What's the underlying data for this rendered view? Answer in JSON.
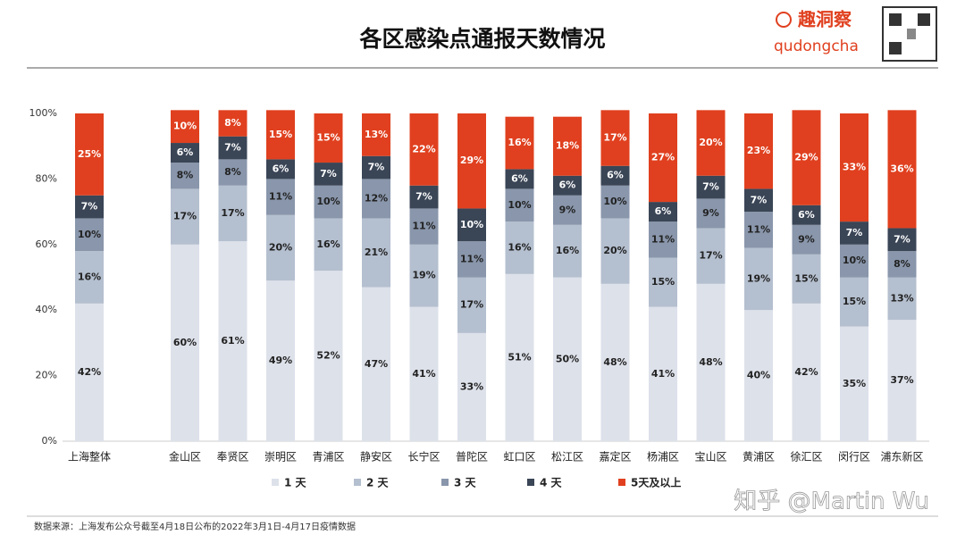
{
  "chart_data": {
    "type": "stacked_bar",
    "title": "各区感染点通报天数情况",
    "brand": "趣洞察",
    "brand_sub": "qudongcha",
    "source": "数据来源：上海发布公众号截至4月18日公布的2022年3月1日-4月17日疫情数据",
    "watermark": "知乎 @Martin Wu",
    "categories": [
      "上海整体",
      "金山区",
      "奉贤区",
      "崇明区",
      "青浦区",
      "静安区",
      "长宁区",
      "普陀区",
      "虹口区",
      "松江区",
      "嘉定区",
      "杨浦区",
      "宝山区",
      "黄浦区",
      "徐汇区",
      "闵行区",
      "浦东新区"
    ],
    "series": [
      {
        "name": "1 天",
        "color": "#dde1ea",
        "values": [
          42,
          60,
          61,
          49,
          52,
          47,
          41,
          33,
          51,
          50,
          48,
          41,
          48,
          40,
          42,
          35,
          37
        ],
        "value_labels": [
          "42%",
          "60%",
          "61%",
          "49%",
          "52%",
          "47%",
          "41%",
          "33%",
          "51%",
          "50%",
          "48%",
          "41%",
          "48%",
          "40%",
          "42%",
          "35%",
          "37%"
        ]
      },
      {
        "name": "2 天",
        "color": "#b4bfcf",
        "values": [
          16,
          17,
          17,
          20,
          16,
          21,
          19,
          17,
          16,
          16,
          20,
          15,
          17,
          19,
          15,
          15,
          13
        ],
        "value_labels": [
          "16%",
          "17%",
          "17%",
          "20%",
          "16%",
          "21%",
          "19%",
          "17%",
          "16%",
          "16%",
          "20%",
          "15%",
          "17%",
          "19%",
          "15%",
          "15%",
          "13%"
        ]
      },
      {
        "name": "3 天",
        "color": "#8996ab",
        "values": [
          10,
          8,
          8,
          11,
          10,
          12,
          11,
          11,
          10,
          9,
          10,
          11,
          9,
          11,
          9,
          10,
          8
        ],
        "value_labels": [
          "10%",
          "8%",
          "8%",
          "11%",
          "10%",
          "12%",
          "11%",
          "11%",
          "10%",
          "9%",
          "10%",
          "11%",
          "9%",
          "11%",
          "9%",
          "10%",
          "8%"
        ]
      },
      {
        "name": "4 天",
        "color": "#3a4556",
        "values": [
          7,
          6,
          7,
          6,
          7,
          7,
          7,
          10,
          6,
          6,
          6,
          6,
          7,
          7,
          6,
          7,
          7
        ],
        "value_labels": [
          "7%",
          "6%",
          "7%",
          "6%",
          "7%",
          "7%",
          "7%",
          "10%",
          "6%",
          "6%",
          "6%",
          "6%",
          "7%",
          "7%",
          "6%",
          "7%",
          "7%"
        ]
      },
      {
        "name": "5天及以上",
        "color": "#e0401f",
        "values": [
          25,
          10,
          8,
          15,
          15,
          13,
          22,
          29,
          16,
          18,
          17,
          27,
          20,
          23,
          29,
          33,
          36
        ],
        "value_labels": [
          "25%",
          "10%",
          "8%",
          "15%",
          "15%",
          "13%",
          "22%",
          "29%",
          "16%",
          "18%",
          "17%",
          "27%",
          "20%",
          "23%",
          "29%",
          "33%",
          "36%"
        ]
      }
    ],
    "ylim": [
      0,
      100
    ],
    "yticks": [
      {
        "value": 0,
        "label": "0%"
      },
      {
        "value": 20,
        "label": "20%"
      },
      {
        "value": 40,
        "label": "40%"
      },
      {
        "value": 60,
        "label": "60%"
      },
      {
        "value": 80,
        "label": "80%"
      },
      {
        "value": 100,
        "label": "100%"
      }
    ],
    "grid": false
  }
}
